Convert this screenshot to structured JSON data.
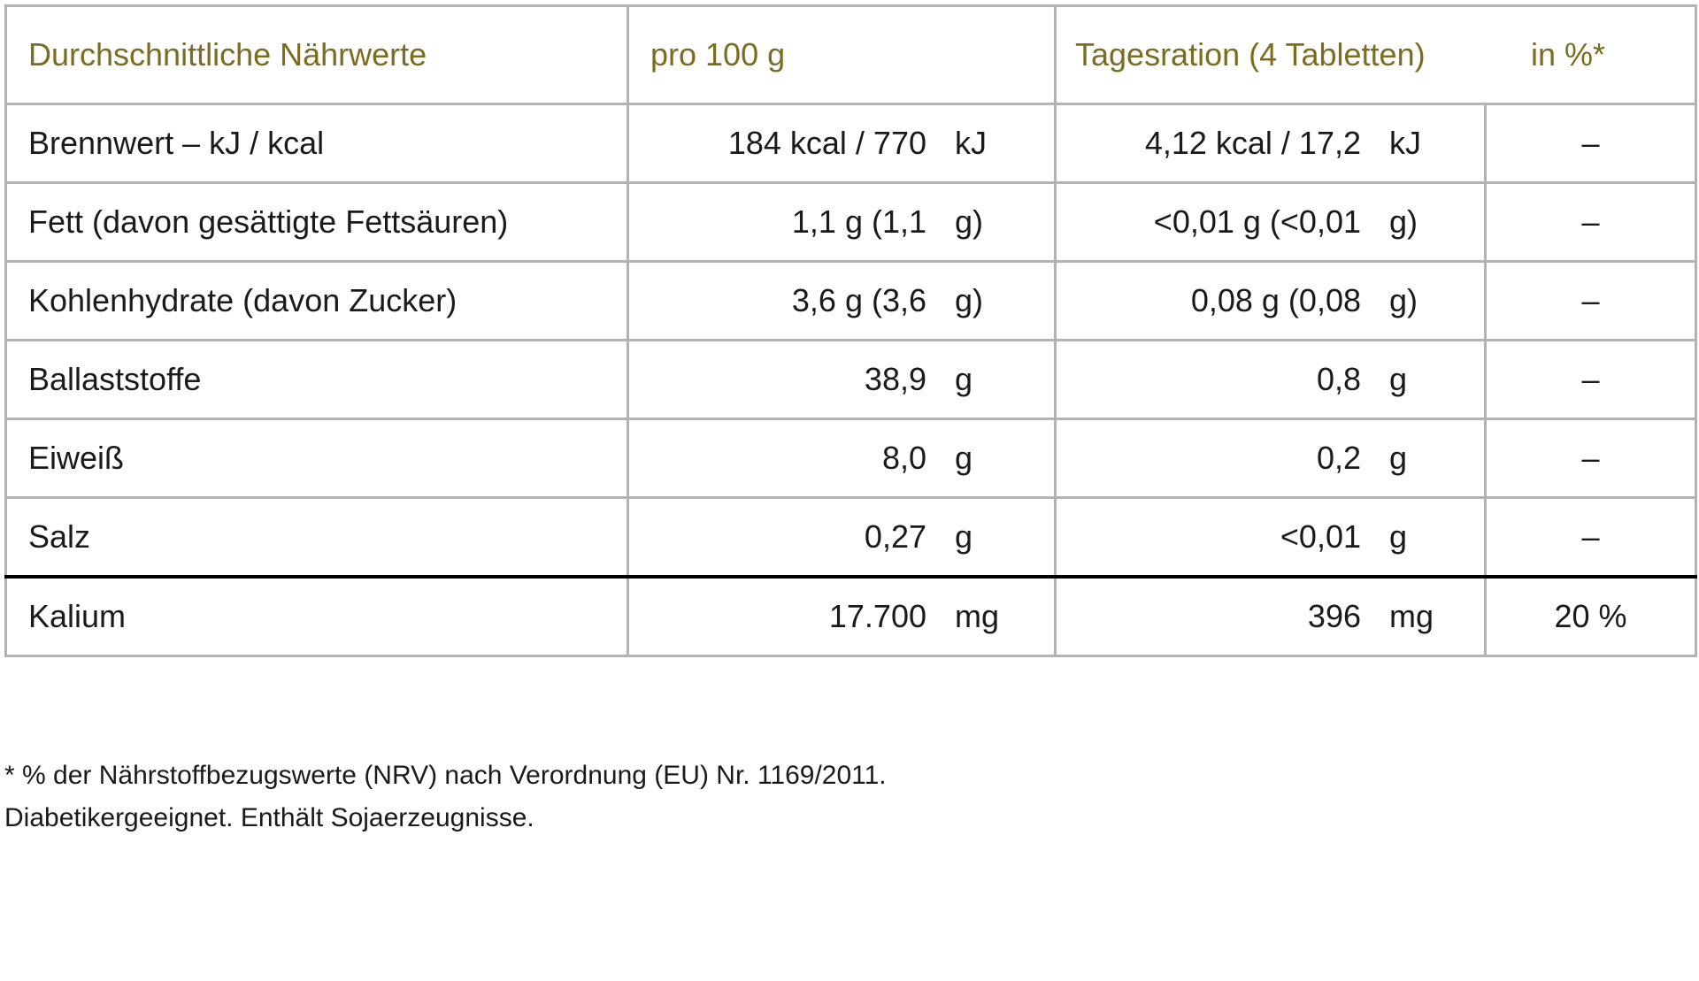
{
  "colors": {
    "header_text": "#7b6c1f",
    "grid_line": "#b3b3b3",
    "thick_rule": "#000000"
  },
  "table": {
    "header": {
      "label": "Durchschnittliche Nährwerte",
      "per100": "pro 100 g",
      "daily": "Tagesration (4 Tabletten)",
      "percent": "in %*"
    },
    "rows": [
      {
        "label": "Brennwert – kJ / kcal",
        "per100_value": "184 kcal / 770",
        "per100_unit": "kJ",
        "daily_value": "4,12 kcal / 17,2",
        "daily_unit": "kJ",
        "percent": "–"
      },
      {
        "label": "Fett (davon gesättigte Fettsäuren)",
        "per100_value": "1,1 g (1,1",
        "per100_unit": "g)",
        "daily_value": "<0,01 g (<0,01",
        "daily_unit": "g)",
        "percent": "–"
      },
      {
        "label": "Kohlenhydrate (davon Zucker)",
        "per100_value": "3,6 g (3,6",
        "per100_unit": "g)",
        "daily_value": "0,08 g (0,08",
        "daily_unit": "g)",
        "percent": "–"
      },
      {
        "label": "Ballaststoffe",
        "per100_value": "38,9",
        "per100_unit": "g",
        "daily_value": "0,8",
        "daily_unit": "g",
        "percent": "–"
      },
      {
        "label": "Eiweiß",
        "per100_value": "8,0",
        "per100_unit": "g",
        "daily_value": "0,2",
        "daily_unit": "g",
        "percent": "–"
      },
      {
        "label": "Salz",
        "per100_value": "0,27",
        "per100_unit": "g",
        "daily_value": "<0,01",
        "daily_unit": "g",
        "percent": "–"
      },
      {
        "label": "Kalium",
        "per100_value": "17.700",
        "per100_unit": "mg",
        "daily_value": "396",
        "daily_unit": "mg",
        "percent": "20 %"
      }
    ]
  },
  "footnotes": {
    "line1": "* % der Nährstoffbezugswerte (NRV) nach Verordnung (EU) Nr. 1169/2011.",
    "line2": "Diabetikergeeignet. Enthält Sojaerzeugnisse."
  }
}
